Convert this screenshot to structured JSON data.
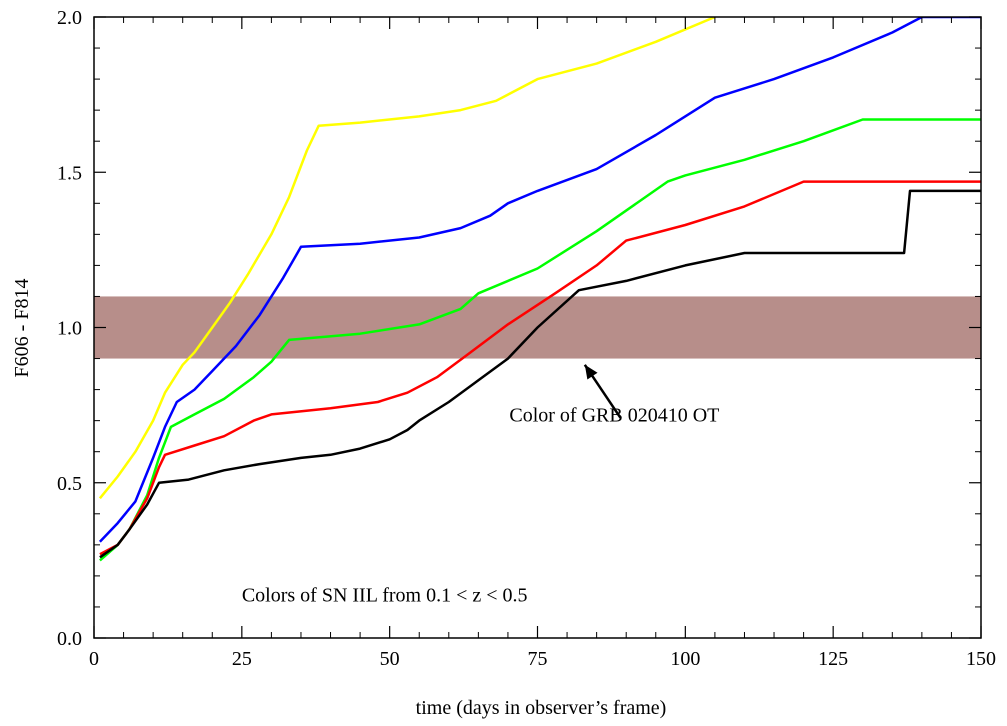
{
  "chart_data": {
    "type": "line",
    "title": "",
    "xlabel": "time (days in observer’s frame)",
    "ylabel": "F606 - F814",
    "xlim": [
      0,
      150
    ],
    "ylim": [
      0.0,
      2.0
    ],
    "x_ticks": [
      0,
      25,
      50,
      75,
      100,
      125,
      150
    ],
    "x_tick_labels": [
      "0",
      "25",
      "50",
      "75",
      "100",
      "125",
      "150"
    ],
    "y_ticks": [
      0.0,
      0.5,
      1.0,
      1.5,
      2.0
    ],
    "y_tick_labels": [
      "0.0",
      "0.5",
      "1.0",
      "1.5",
      "2.0"
    ],
    "grid": false,
    "band": {
      "y_min": 0.9,
      "y_max": 1.1,
      "color": "#b78e8a"
    },
    "annotations": {
      "band_label": "Color of GRB 020410 OT",
      "band_label_pos": [
        88,
        0.72
      ],
      "arrow_from": [
        89,
        0.71
      ],
      "arrow_to": [
        83,
        0.88
      ],
      "series_note": "Colors of SN IIL from 0.1 < z < 0.5",
      "series_note_pos": [
        25,
        0.14
      ]
    },
    "series": [
      {
        "color": "#ffff00",
        "x": [
          1,
          4,
          7,
          10,
          12,
          15,
          17,
          20,
          23,
          26,
          30,
          33,
          36,
          38,
          45,
          55,
          62,
          68,
          72,
          75,
          85,
          95,
          105
        ],
        "y": [
          0.45,
          0.52,
          0.6,
          0.7,
          0.79,
          0.88,
          0.92,
          1.0,
          1.08,
          1.17,
          1.3,
          1.42,
          1.57,
          1.65,
          1.66,
          1.68,
          1.7,
          1.73,
          1.77,
          1.8,
          1.85,
          1.92,
          2.0
        ]
      },
      {
        "color": "#0000ff",
        "x": [
          1,
          4,
          7,
          10,
          12,
          14,
          17,
          20,
          24,
          28,
          32,
          35,
          45,
          55,
          62,
          67,
          70,
          75,
          85,
          95,
          105,
          115,
          125,
          135,
          140,
          150
        ],
        "y": [
          0.31,
          0.37,
          0.44,
          0.58,
          0.68,
          0.76,
          0.8,
          0.86,
          0.94,
          1.04,
          1.16,
          1.26,
          1.27,
          1.29,
          1.32,
          1.36,
          1.4,
          1.44,
          1.51,
          1.62,
          1.74,
          1.8,
          1.87,
          1.95,
          2.0,
          2.0
        ]
      },
      {
        "color": "#00ff00",
        "x": [
          1,
          4,
          6,
          9,
          11,
          13,
          17,
          22,
          27,
          30,
          33,
          45,
          55,
          62,
          65,
          75,
          85,
          97,
          100,
          110,
          120,
          130,
          150
        ],
        "y": [
          0.25,
          0.3,
          0.35,
          0.46,
          0.58,
          0.68,
          0.72,
          0.77,
          0.84,
          0.89,
          0.96,
          0.98,
          1.01,
          1.06,
          1.11,
          1.19,
          1.31,
          1.47,
          1.49,
          1.54,
          1.6,
          1.67,
          1.67
        ]
      },
      {
        "color": "#ff0000",
        "x": [
          1,
          4,
          6,
          9,
          11,
          12,
          17,
          22,
          27,
          30,
          40,
          48,
          53,
          58,
          63,
          70,
          78,
          85,
          90,
          100,
          110,
          120,
          150
        ],
        "y": [
          0.27,
          0.3,
          0.35,
          0.45,
          0.55,
          0.59,
          0.62,
          0.65,
          0.7,
          0.72,
          0.74,
          0.76,
          0.79,
          0.84,
          0.91,
          1.01,
          1.11,
          1.2,
          1.28,
          1.33,
          1.39,
          1.47,
          1.47
        ]
      },
      {
        "color": "#000000",
        "x": [
          1,
          4,
          6,
          9,
          11,
          16,
          22,
          28,
          35,
          40,
          45,
          50,
          53,
          55,
          60,
          65,
          70,
          75,
          82,
          90,
          100,
          110,
          120,
          130,
          137,
          138,
          150
        ],
        "y": [
          0.26,
          0.3,
          0.35,
          0.43,
          0.5,
          0.51,
          0.54,
          0.56,
          0.58,
          0.59,
          0.61,
          0.64,
          0.67,
          0.7,
          0.76,
          0.83,
          0.9,
          1.0,
          1.12,
          1.15,
          1.2,
          1.24,
          1.24,
          1.24,
          1.24,
          1.44,
          1.44
        ]
      }
    ]
  }
}
